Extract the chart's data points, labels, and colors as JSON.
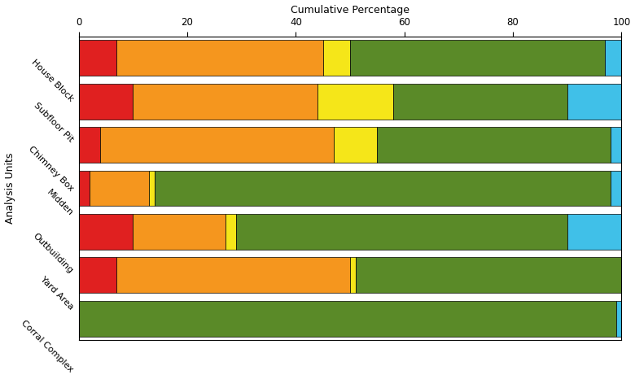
{
  "categories": [
    "House Block",
    "Subfloor Pit",
    "Chimney Box",
    "Midden",
    "Outbuilding",
    "Yard Area",
    "Corral Complex"
  ],
  "segments": {
    "red": [
      7,
      10,
      4,
      2,
      10,
      7,
      0
    ],
    "orange": [
      38,
      34,
      43,
      11,
      17,
      43,
      0
    ],
    "yellow": [
      5,
      14,
      8,
      1,
      2,
      1,
      0
    ],
    "green": [
      47,
      32,
      43,
      84,
      61,
      49,
      99
    ],
    "cyan": [
      3,
      10,
      2,
      2,
      10,
      0,
      1
    ]
  },
  "colors": {
    "red": "#e02020",
    "orange": "#f5961e",
    "yellow": "#f5e619",
    "green": "#5a8a28",
    "cyan": "#40c0e8"
  },
  "title": "Cumulative Percentage",
  "ylabel": "Analysis Units",
  "xlim": [
    0,
    100
  ],
  "xticks": [
    0,
    20,
    40,
    60,
    80,
    100
  ],
  "bar_height": 0.82,
  "figsize": [
    7.8,
    4.66
  ],
  "dpi": 100,
  "label_rotation": -45,
  "label_fontsize": 8,
  "xlabel_fontsize": 9,
  "ylabel_fontsize": 9
}
